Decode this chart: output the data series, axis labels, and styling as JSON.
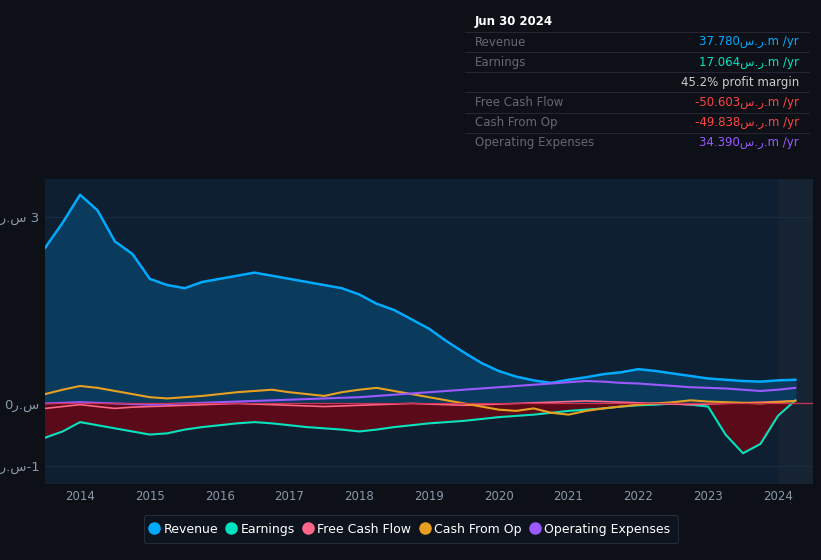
{
  "bg_color": "#0d1117",
  "plot_bg_color": "#0d1f30",
  "highlight_color": "#162333",
  "years": [
    2013.5,
    2013.75,
    2014.0,
    2014.25,
    2014.5,
    2014.75,
    2015.0,
    2015.25,
    2015.5,
    2015.75,
    2016.0,
    2016.25,
    2016.5,
    2016.75,
    2017.0,
    2017.25,
    2017.5,
    2017.75,
    2018.0,
    2018.25,
    2018.5,
    2018.75,
    2019.0,
    2019.25,
    2019.5,
    2019.75,
    2020.0,
    2020.25,
    2020.5,
    2020.75,
    2021.0,
    2021.25,
    2021.5,
    2021.75,
    2022.0,
    2022.25,
    2022.5,
    2022.75,
    2023.0,
    2023.25,
    2023.5,
    2023.75,
    2024.0,
    2024.25
  ],
  "revenue": [
    2.5,
    2.9,
    3.35,
    3.1,
    2.6,
    2.4,
    2.0,
    1.9,
    1.85,
    1.95,
    2.0,
    2.05,
    2.1,
    2.05,
    2.0,
    1.95,
    1.9,
    1.85,
    1.75,
    1.6,
    1.5,
    1.35,
    1.2,
    1.0,
    0.82,
    0.65,
    0.52,
    0.43,
    0.37,
    0.33,
    0.38,
    0.42,
    0.47,
    0.5,
    0.55,
    0.52,
    0.48,
    0.44,
    0.4,
    0.38,
    0.36,
    0.35,
    0.37,
    0.38
  ],
  "earnings": [
    -0.55,
    -0.45,
    -0.3,
    -0.35,
    -0.4,
    -0.45,
    -0.5,
    -0.48,
    -0.42,
    -0.38,
    -0.35,
    -0.32,
    -0.3,
    -0.32,
    -0.35,
    -0.38,
    -0.4,
    -0.42,
    -0.45,
    -0.42,
    -0.38,
    -0.35,
    -0.32,
    -0.3,
    -0.28,
    -0.25,
    -0.22,
    -0.2,
    -0.18,
    -0.15,
    -0.12,
    -0.1,
    -0.08,
    -0.05,
    -0.03,
    -0.02,
    0.0,
    -0.02,
    -0.05,
    -0.5,
    -0.8,
    -0.65,
    -0.2,
    0.05
  ],
  "free_cash_flow": [
    -0.08,
    -0.05,
    -0.02,
    -0.05,
    -0.08,
    -0.06,
    -0.05,
    -0.04,
    -0.03,
    -0.02,
    -0.01,
    0.0,
    -0.01,
    -0.02,
    -0.03,
    -0.04,
    -0.05,
    -0.04,
    -0.03,
    -0.02,
    -0.01,
    0.0,
    -0.01,
    -0.02,
    -0.03,
    -0.02,
    -0.01,
    0.0,
    0.01,
    0.02,
    0.03,
    0.04,
    0.03,
    0.02,
    0.01,
    0.0,
    -0.01,
    -0.02,
    -0.01,
    0.0,
    0.01,
    0.02,
    0.03,
    0.04
  ],
  "cash_from_op": [
    0.15,
    0.22,
    0.28,
    0.25,
    0.2,
    0.15,
    0.1,
    0.08,
    0.1,
    0.12,
    0.15,
    0.18,
    0.2,
    0.22,
    0.18,
    0.15,
    0.12,
    0.18,
    0.22,
    0.25,
    0.2,
    0.15,
    0.1,
    0.05,
    0.0,
    -0.05,
    -0.1,
    -0.12,
    -0.08,
    -0.15,
    -0.18,
    -0.12,
    -0.08,
    -0.05,
    -0.02,
    0.0,
    0.02,
    0.05,
    0.03,
    0.02,
    0.01,
    0.0,
    0.02,
    0.04
  ],
  "op_expenses": [
    0.0,
    0.01,
    0.02,
    0.01,
    0.0,
    -0.01,
    -0.02,
    -0.01,
    0.0,
    0.01,
    0.02,
    0.03,
    0.04,
    0.05,
    0.06,
    0.07,
    0.08,
    0.09,
    0.1,
    0.12,
    0.14,
    0.16,
    0.18,
    0.2,
    0.22,
    0.24,
    0.26,
    0.28,
    0.3,
    0.32,
    0.34,
    0.36,
    0.35,
    0.33,
    0.32,
    0.3,
    0.28,
    0.26,
    0.25,
    0.24,
    0.22,
    0.2,
    0.22,
    0.25
  ],
  "revenue_color": "#00aaff",
  "revenue_fill": "#0a3a5c",
  "earnings_color": "#00e5c0",
  "earnings_fill": "#5a0a18",
  "fcf_color": "#ff6688",
  "cop_color": "#e8a020",
  "opex_color": "#9b59ff",
  "grid_color": "#1a2d42",
  "zero_line_color": "#cc3355",
  "text_color": "#8899aa",
  "highlight_start": 2024.0,
  "xmin": 2013.5,
  "xmax": 2024.5,
  "ymin": -1.3,
  "ymax": 3.6,
  "legend_labels": [
    "Revenue",
    "Earnings",
    "Free Cash Flow",
    "Cash From Op",
    "Operating Expenses"
  ],
  "info_rows": [
    {
      "label": "Jun 30 2024",
      "value": "",
      "label_color": "#ffffff",
      "value_color": "#ffffff",
      "bold_label": true
    },
    {
      "label": "Revenue",
      "value": "37.780س.ر.m /yr",
      "label_color": "#666677",
      "value_color": "#00aaff",
      "bold_label": false
    },
    {
      "label": "Earnings",
      "value": "17.064س.ر.m /yr",
      "label_color": "#666677",
      "value_color": "#00e5c0",
      "bold_label": false
    },
    {
      "label": "",
      "value": "45.2% profit margin",
      "label_color": "#666677",
      "value_color": "#cccccc",
      "bold_label": false
    },
    {
      "label": "Free Cash Flow",
      "value": "-50.603س.ر.m /yr",
      "label_color": "#666677",
      "value_color": "#ff4444",
      "bold_label": false
    },
    {
      "label": "Cash From Op",
      "value": "-49.838س.ر.m /yr",
      "label_color": "#666677",
      "value_color": "#ff4444",
      "bold_label": false
    },
    {
      "label": "Operating Expenses",
      "value": "34.390س.ر.m /yr",
      "label_color": "#666677",
      "value_color": "#9b59ff",
      "bold_label": false
    }
  ]
}
